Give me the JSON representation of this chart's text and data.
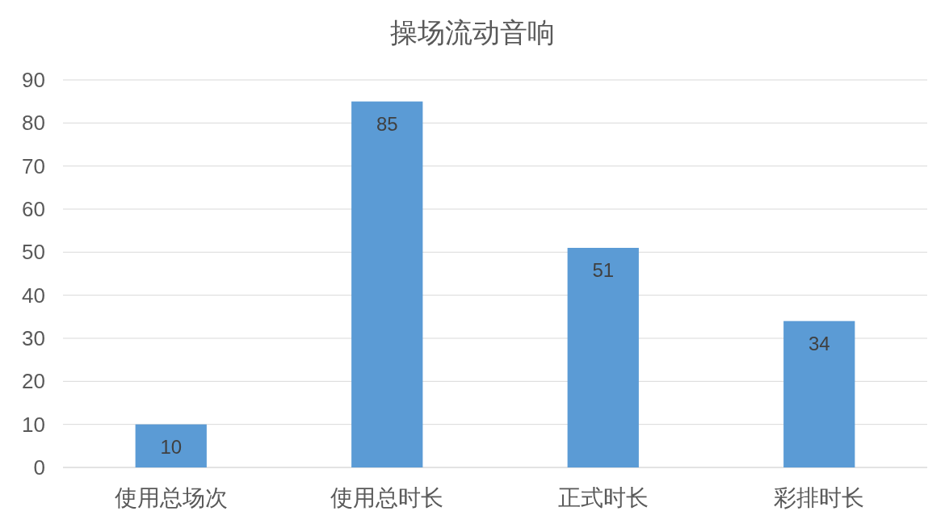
{
  "chart_data": {
    "type": "bar",
    "title": "操场流动音响",
    "categories": [
      "使用总场次",
      "使用总时长",
      "正式时长",
      "彩排时长"
    ],
    "values": [
      10,
      85,
      51,
      34
    ],
    "color": "#5b9bd5",
    "ylim": [
      0,
      90
    ],
    "yticks": [
      0,
      10,
      20,
      30,
      40,
      50,
      60,
      70,
      80,
      90
    ],
    "grid": "y",
    "data_labels": true
  }
}
